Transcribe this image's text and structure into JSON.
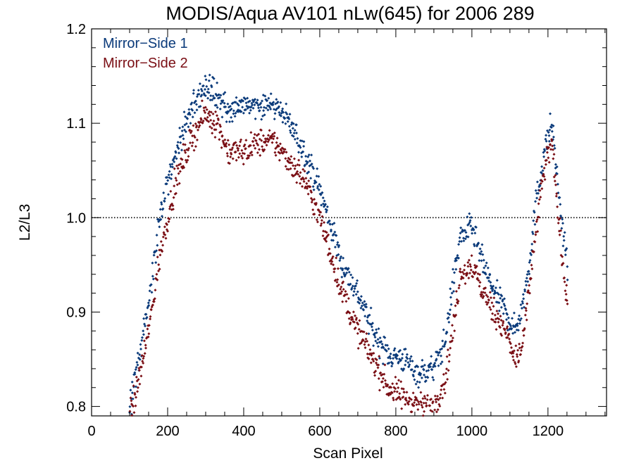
{
  "chart_data": {
    "type": "scatter",
    "title": "MODIS/Aqua AV101 nLw(645) for 2006 289",
    "xlabel": "Scan Pixel",
    "ylabel": "L2/L3",
    "xlim": [
      0,
      1354
    ],
    "ylim": [
      0.79,
      1.2
    ],
    "x_ticks": [
      0,
      200,
      400,
      600,
      800,
      1000,
      1200
    ],
    "x_tick_labels": [
      "0",
      "200",
      "400",
      "600",
      "800",
      "1000",
      "1200"
    ],
    "y_ticks": [
      0.8,
      0.9,
      1.0,
      1.1,
      1.2
    ],
    "y_tick_labels": [
      "0.8",
      "0.9",
      "1.0",
      "1.1",
      "1.2"
    ],
    "reference_line": {
      "y": 1.0,
      "style": "dotted"
    },
    "legend_position": "top-left",
    "series": [
      {
        "name": "Mirror−Side 1",
        "color": "#0a3a7a",
        "profile": [
          [
            100,
            0.8
          ],
          [
            120,
            0.84
          ],
          [
            150,
            0.91
          ],
          [
            180,
            1.0
          ],
          [
            210,
            1.05
          ],
          [
            240,
            1.09
          ],
          [
            270,
            1.12
          ],
          [
            300,
            1.14
          ],
          [
            330,
            1.13
          ],
          [
            360,
            1.11
          ],
          [
            400,
            1.12
          ],
          [
            440,
            1.12
          ],
          [
            480,
            1.12
          ],
          [
            520,
            1.1
          ],
          [
            560,
            1.07
          ],
          [
            600,
            1.03
          ],
          [
            630,
            0.99
          ],
          [
            660,
            0.95
          ],
          [
            700,
            0.92
          ],
          [
            740,
            0.88
          ],
          [
            780,
            0.855
          ],
          [
            820,
            0.85
          ],
          [
            860,
            0.835
          ],
          [
            900,
            0.84
          ],
          [
            930,
            0.87
          ],
          [
            950,
            0.93
          ],
          [
            970,
            0.98
          ],
          [
            1000,
            0.99
          ],
          [
            1030,
            0.95
          ],
          [
            1060,
            0.92
          ],
          [
            1090,
            0.9
          ],
          [
            1110,
            0.88
          ],
          [
            1130,
            0.9
          ],
          [
            1150,
            0.95
          ],
          [
            1170,
            1.02
          ],
          [
            1190,
            1.07
          ],
          [
            1210,
            1.1
          ],
          [
            1225,
            1.04
          ],
          [
            1240,
            0.98
          ],
          [
            1252,
            0.95
          ]
        ]
      },
      {
        "name": "Mirror−Side 2",
        "color": "#7a0e14",
        "profile": [
          [
            100,
            0.79
          ],
          [
            120,
            0.82
          ],
          [
            150,
            0.88
          ],
          [
            180,
            0.96
          ],
          [
            210,
            1.02
          ],
          [
            240,
            1.06
          ],
          [
            270,
            1.09
          ],
          [
            300,
            1.11
          ],
          [
            330,
            1.1
          ],
          [
            360,
            1.07
          ],
          [
            400,
            1.07
          ],
          [
            440,
            1.08
          ],
          [
            480,
            1.08
          ],
          [
            520,
            1.06
          ],
          [
            560,
            1.04
          ],
          [
            600,
            1.0
          ],
          [
            630,
            0.96
          ],
          [
            660,
            0.92
          ],
          [
            700,
            0.88
          ],
          [
            740,
            0.85
          ],
          [
            780,
            0.82
          ],
          [
            820,
            0.81
          ],
          [
            860,
            0.8
          ],
          [
            900,
            0.8
          ],
          [
            930,
            0.83
          ],
          [
            950,
            0.88
          ],
          [
            970,
            0.94
          ],
          [
            1000,
            0.95
          ],
          [
            1030,
            0.92
          ],
          [
            1060,
            0.9
          ],
          [
            1090,
            0.88
          ],
          [
            1110,
            0.85
          ],
          [
            1130,
            0.86
          ],
          [
            1150,
            0.92
          ],
          [
            1170,
            0.99
          ],
          [
            1190,
            1.05
          ],
          [
            1210,
            1.08
          ],
          [
            1225,
            1.01
          ],
          [
            1240,
            0.95
          ],
          [
            1252,
            0.91
          ]
        ]
      }
    ]
  }
}
